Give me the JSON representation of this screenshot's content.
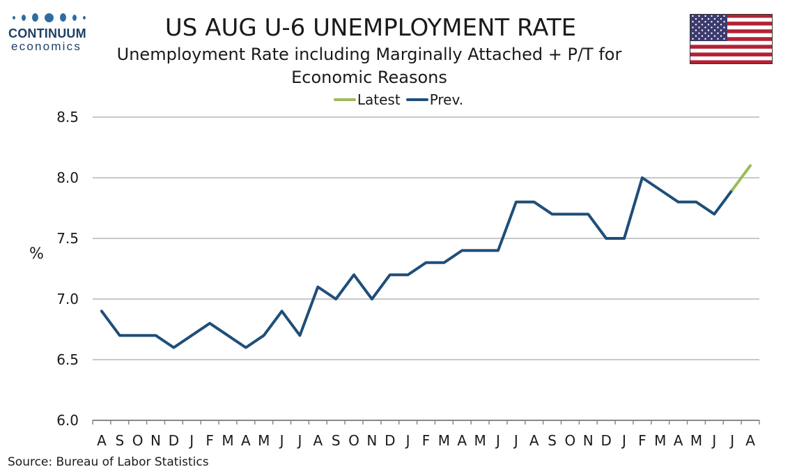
{
  "logo": {
    "line1": "CONTINUUM",
    "line2": "economics"
  },
  "title": "US AUG U-6 UNEMPLOYMENT RATE",
  "subtitle": "Unemployment Rate including Marginally Attached + P/T for Economic Reasons",
  "source": "Source: Bureau of Labor Statistics",
  "flag": {
    "name": "us-flag-icon",
    "red": "#b22234",
    "blue": "#3c3b6e"
  },
  "chart_data": {
    "type": "line",
    "ylabel": "%",
    "ylim": [
      6.0,
      8.5
    ],
    "yticks": [
      "8.5",
      "8.0",
      "7.5",
      "7.0",
      "6.5",
      "6.0"
    ],
    "categories": [
      "A",
      "S",
      "O",
      "N",
      "D",
      "J",
      "F",
      "M",
      "A",
      "M",
      "J",
      "J",
      "A",
      "S",
      "O",
      "N",
      "D",
      "J",
      "F",
      "M",
      "A",
      "M",
      "J",
      "J",
      "A",
      "S",
      "O",
      "N",
      "D",
      "J",
      "F",
      "M",
      "A",
      "M",
      "J",
      "J",
      "A"
    ],
    "grid": true,
    "legend_position": "top-center",
    "series": [
      {
        "name": "Latest",
        "color": "#9bbb59",
        "values": [
          null,
          null,
          null,
          null,
          null,
          null,
          null,
          null,
          null,
          null,
          null,
          null,
          null,
          null,
          null,
          null,
          null,
          null,
          null,
          null,
          null,
          null,
          null,
          null,
          null,
          null,
          null,
          null,
          null,
          null,
          null,
          null,
          null,
          null,
          null,
          7.9,
          8.1
        ]
      },
      {
        "name": "Prev.",
        "color": "#1f4e79",
        "values": [
          6.9,
          6.7,
          6.7,
          6.7,
          6.6,
          6.7,
          6.8,
          6.7,
          6.6,
          6.7,
          6.9,
          6.7,
          7.1,
          7.0,
          7.2,
          7.0,
          7.2,
          7.2,
          7.3,
          7.3,
          7.4,
          7.4,
          7.4,
          7.8,
          7.8,
          7.7,
          7.7,
          7.7,
          7.5,
          7.5,
          8.0,
          7.9,
          7.8,
          7.8,
          7.7,
          7.9,
          null
        ]
      }
    ]
  }
}
